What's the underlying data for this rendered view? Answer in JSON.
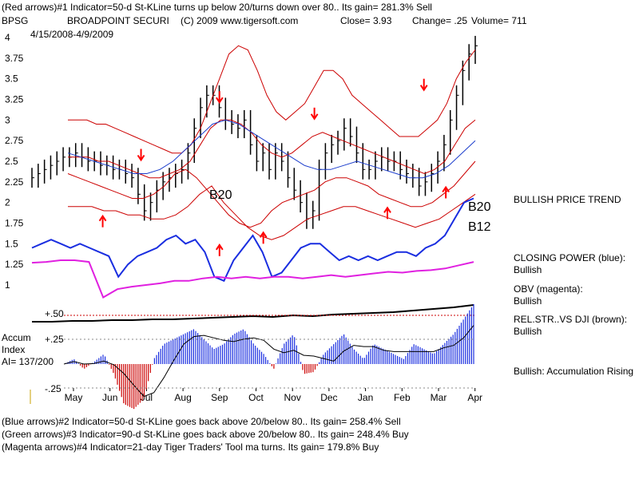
{
  "header": {
    "line1": "(Red arrows)#1 Indicator=50-d St-KLine turns up below 20/turns down over 80.. Its gain= 281.3% Sell",
    "ticker": "BPSG",
    "company": "BROADPOINT SECURI",
    "copyright": "(C) 2009 www.tigersoft.com",
    "close": "Close=  3.93",
    "change": "Change= .25",
    "volume": "Volume= 711",
    "date_range": "4/15/2008-4/9/2009"
  },
  "footer": {
    "line1": "(Blue arrows)#2 Indicator=50-d St-KLine goes back above 20/below 80.. Its gain= 258.4% Sell",
    "line2": "(Green arrows)#3 Indicator=90-d St-KLine goes back above 20/below 80.. Its gain= 248.4% Buy",
    "line3": "(Magenta arrows)#4 Indicator=21-day Tiger Traders' Tool ma turns. Its gain= 179.8% Buy"
  },
  "side_notes": {
    "trend": "BULLISH PRICE TREND",
    "cp_label": "CLOSING POWER (blue):",
    "cp_value": "Bullish",
    "obv_label": "OBV (magenta):",
    "obv_value": "Bullish",
    "rs_label": "REL.STR..VS DJI (brown):",
    "rs_value": "Bullish",
    "accum_note": "Bullish: Accumulation Rising"
  },
  "accum_labels": {
    "title1": "Accum",
    "title2": "Index",
    "ai": "AI= 137/200",
    "plus50": "+.50",
    "plus25": "+.25",
    "minus25": "-.25"
  },
  "annotations": {
    "b20_left": "B20",
    "b20_right": "B20",
    "b12_right": "B12"
  },
  "chart_data": {
    "type": "line",
    "y_ticks": [
      "4",
      "3.75",
      "3.5",
      "3.25",
      "3",
      "2.75",
      "2.5",
      "2.25",
      "2",
      "1.75",
      "1.5",
      "1.25",
      "1"
    ],
    "ylim": [
      1,
      4
    ],
    "x_ticks": [
      "May",
      "Jun",
      "Jul",
      "Aug",
      "Sep",
      "Oct",
      "Nov",
      "Dec",
      "Jan",
      "Feb",
      "Mar",
      "Apr"
    ],
    "colors": {
      "price": "#000000",
      "band": "#cc0000",
      "ma": "#1a3ccc",
      "closing_power": "#1a2ee0",
      "obv": "#e020e0",
      "rel_strength": "#000000",
      "accum_pos": "#1a2ee0",
      "accum_neg": "#cc0000",
      "arrow": "#ff0000"
    },
    "price": [
      2.3,
      2.35,
      2.4,
      2.45,
      2.5,
      2.55,
      2.55,
      2.6,
      2.55,
      2.5,
      2.5,
      2.45,
      2.45,
      2.4,
      2.4,
      2.35,
      2.3,
      2.1,
      1.9,
      2.0,
      2.15,
      2.25,
      2.3,
      2.35,
      2.4,
      2.6,
      2.9,
      3.15,
      3.3,
      3.3,
      3.15,
      3.0,
      2.95,
      2.9,
      3.0,
      2.7,
      2.5,
      2.6,
      2.4,
      2.6,
      2.5,
      2.3,
      2.15,
      2.0,
      1.8,
      1.9,
      2.4,
      2.6,
      2.7,
      2.75,
      2.9,
      2.8,
      2.6,
      2.4,
      2.4,
      2.5,
      2.55,
      2.5,
      2.5,
      2.4,
      2.35,
      2.3,
      2.2,
      2.25,
      2.35,
      2.5,
      2.7,
      3.0,
      3.3,
      3.6,
      3.8,
      3.9
    ],
    "band_upper": [
      3.0,
      3.0,
      3.0,
      2.95,
      2.95,
      2.9,
      2.85,
      2.8,
      2.75,
      2.7,
      2.65,
      2.6,
      2.6,
      2.7,
      2.9,
      3.2,
      3.5,
      3.8,
      3.9,
      3.85,
      3.6,
      3.3,
      3.1,
      3.0,
      3.1,
      3.2,
      3.4,
      3.6,
      3.6,
      3.5,
      3.3,
      3.2,
      3.1,
      3.0,
      2.9,
      2.8,
      2.8,
      2.8,
      2.9,
      3.0,
      3.2,
      3.5,
      3.7,
      3.85
    ],
    "band_mid_upper": [
      2.55,
      2.55,
      2.55,
      2.5,
      2.5,
      2.45,
      2.4,
      2.35,
      2.3,
      2.3,
      2.35,
      2.4,
      2.5,
      2.7,
      2.9,
      3.0,
      3.0,
      2.95,
      2.85,
      2.7,
      2.6,
      2.55,
      2.6,
      2.7,
      2.8,
      2.85,
      2.8,
      2.75,
      2.7,
      2.65,
      2.6,
      2.55,
      2.5,
      2.45,
      2.4,
      2.35,
      2.4,
      2.5,
      2.7,
      2.9,
      3.0
    ],
    "band_mid_lower": [
      2.35,
      2.3,
      2.25,
      2.2,
      2.15,
      2.1,
      2.05,
      2.05,
      2.1,
      2.2,
      2.35,
      2.4,
      2.3,
      2.15,
      2.0,
      1.85,
      1.75,
      1.7,
      1.75,
      1.9,
      2.0,
      2.05,
      2.1,
      2.15,
      2.25,
      2.3,
      2.3,
      2.25,
      2.2,
      2.1,
      2.05,
      2.0,
      1.95,
      1.95,
      2.0,
      2.1,
      2.2,
      2.35,
      2.5
    ],
    "band_lower": [
      1.95,
      1.95,
      1.95,
      1.9,
      1.9,
      1.85,
      1.85,
      1.8,
      1.8,
      1.85,
      1.95,
      2.1,
      2.2,
      2.0,
      1.85,
      1.7,
      1.6,
      1.55,
      1.6,
      1.7,
      1.8,
      1.85,
      1.9,
      1.95,
      1.95,
      1.9,
      1.85,
      1.8,
      1.75,
      1.7,
      1.75,
      1.8,
      1.9,
      2.0,
      2.1
    ],
    "ma": [
      2.6,
      2.55,
      2.5,
      2.45,
      2.4,
      2.35,
      2.35,
      2.4,
      2.5,
      2.65,
      2.8,
      2.95,
      3.0,
      2.95,
      2.85,
      2.75,
      2.65,
      2.55,
      2.45,
      2.4,
      2.4,
      2.45,
      2.5,
      2.45,
      2.4,
      2.35,
      2.3,
      2.3,
      2.35,
      2.45,
      2.6,
      2.75
    ],
    "closing_power": [
      1.45,
      1.5,
      1.55,
      1.5,
      1.45,
      1.5,
      1.45,
      1.4,
      1.35,
      1.1,
      1.25,
      1.35,
      1.4,
      1.45,
      1.55,
      1.6,
      1.5,
      1.55,
      1.4,
      1.1,
      1.05,
      1.3,
      1.45,
      1.6,
      1.4,
      1.1,
      1.15,
      1.3,
      1.45,
      1.5,
      1.5,
      1.4,
      1.3,
      1.35,
      1.3,
      1.35,
      1.3,
      1.35,
      1.4,
      1.4,
      1.35,
      1.45,
      1.5,
      1.6,
      1.8,
      2.0,
      2.05
    ],
    "obv": [
      1.27,
      1.28,
      1.3,
      1.3,
      1.28,
      0.85,
      0.95,
      0.98,
      1.0,
      1.02,
      1.05,
      1.05,
      1.08,
      1.1,
      1.08,
      1.1,
      1.08,
      1.1,
      1.1,
      1.08,
      1.1,
      1.12,
      1.1,
      1.12,
      1.14,
      1.16,
      1.15,
      1.17,
      1.18,
      1.2,
      1.24,
      1.28
    ],
    "rel_strength": [
      0.42,
      0.42,
      0.43,
      0.43,
      0.44,
      0.44,
      0.45,
      0.45,
      0.46,
      0.47,
      0.48,
      0.49,
      0.48,
      0.5,
      0.49,
      0.51,
      0.52,
      0.53,
      0.54,
      0.56,
      0.58,
      0.6,
      0.63
    ],
    "accum_index": [
      0.0,
      0.05,
      -0.05,
      0.02,
      0.1,
      -0.1,
      -0.4,
      -0.45,
      -0.35,
      0.05,
      0.2,
      0.25,
      0.3,
      0.35,
      0.25,
      0.15,
      0.2,
      0.3,
      0.35,
      0.2,
      0.1,
      -0.05,
      0.2,
      0.3,
      -0.1,
      -0.08,
      0.1,
      0.2,
      0.3,
      0.15,
      0.05,
      0.2,
      0.15,
      0.1,
      0.05,
      0.2,
      0.15,
      0.1,
      0.2,
      0.3,
      0.45,
      0.6
    ],
    "accum_ylim": [
      -0.5,
      0.7
    ],
    "accum_ticks": [
      0.25,
      -0.25
    ],
    "arrows": [
      {
        "dir": "up",
        "month_pos": 1.8,
        "price": 1.7
      },
      {
        "dir": "down",
        "month_pos": 2.85,
        "price": 2.65
      },
      {
        "dir": "up",
        "month_pos": 5.0,
        "price": 1.35
      },
      {
        "dir": "down",
        "month_pos": 5.0,
        "price": 3.35
      },
      {
        "dir": "up",
        "month_pos": 6.2,
        "price": 1.5
      },
      {
        "dir": "down",
        "month_pos": 7.6,
        "price": 3.15
      },
      {
        "dir": "up",
        "month_pos": 9.6,
        "price": 1.8
      },
      {
        "dir": "down",
        "month_pos": 10.6,
        "price": 3.5
      },
      {
        "dir": "up",
        "month_pos": 11.2,
        "price": 2.05
      }
    ]
  }
}
